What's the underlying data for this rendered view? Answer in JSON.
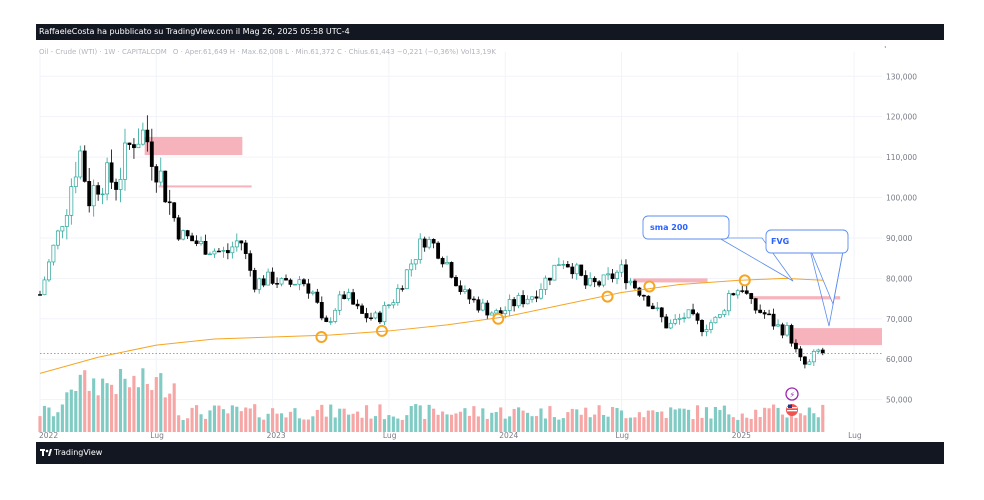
{
  "header": {
    "publisher": "RaffaeleCosta ha pubblicato su TradingView.com il Mag 26, 2025 05:58 UTC-4"
  },
  "legend": {
    "symbol": "Oil - Crude (WTI) · 1W · CAPITALCOM",
    "ohlc": "O · Aper.61,649  H · Max.62,008  L · Min.61,372  C · Chius.61,443  −0,221 (−0,36%)  Vol13,19K"
  },
  "footer": {
    "brand": "TradingView"
  },
  "annotations": {
    "sma": "sma 200",
    "fvg": "FVG"
  },
  "colors": {
    "up": "#26a69a",
    "down": "#000000",
    "sma": "#f5a623",
    "zone": "#f4a6b0",
    "volume_up": "#80cbc4",
    "volume_down": "#f7a6a6",
    "callout_border": "#5b8def",
    "callout_text": "#2962ff"
  },
  "chart_data": {
    "type": "candlestick",
    "timeframe": "1W",
    "y_axis_ticks": [
      "130,000",
      "120,000",
      "110,000",
      "100,000",
      "90,000",
      "80,000",
      "70,000",
      "60,000",
      "50,000"
    ],
    "y_tick_values": [
      130,
      120,
      110,
      100,
      90,
      80,
      70,
      60,
      50
    ],
    "ylim": [
      42,
      136
    ],
    "x_axis_ticks": [
      "2022",
      "Lug",
      "2023",
      "Lug",
      "2024",
      "Lug",
      "2025",
      "Lug"
    ],
    "x_tick_values": [
      2022.0,
      2022.5,
      2023.0,
      2023.5,
      2024.0,
      2024.5,
      2025.0,
      2025.5
    ],
    "xlim": [
      2022.0,
      2025.62
    ],
    "last_price": 61.443,
    "price_anchors": [
      [
        2022.0,
        76
      ],
      [
        2022.06,
        88
      ],
      [
        2022.1,
        95
      ],
      [
        2022.17,
        112
      ],
      [
        2022.21,
        100
      ],
      [
        2022.26,
        105
      ],
      [
        2022.33,
        104
      ],
      [
        2022.4,
        115
      ],
      [
        2022.45,
        116
      ],
      [
        2022.52,
        105
      ],
      [
        2022.6,
        91
      ],
      [
        2022.7,
        88
      ],
      [
        2022.8,
        86
      ],
      [
        2022.86,
        90
      ],
      [
        2022.92,
        79
      ],
      [
        2023.0,
        80
      ],
      [
        2023.06,
        78
      ],
      [
        2023.12,
        80
      ],
      [
        2023.18,
        76
      ],
      [
        2023.22,
        67
      ],
      [
        2023.27,
        73
      ],
      [
        2023.31,
        76
      ],
      [
        2023.38,
        71
      ],
      [
        2023.45,
        70
      ],
      [
        2023.52,
        75
      ],
      [
        2023.58,
        82
      ],
      [
        2023.65,
        90
      ],
      [
        2023.7,
        88
      ],
      [
        2023.76,
        83
      ],
      [
        2023.82,
        76
      ],
      [
        2023.9,
        73
      ],
      [
        2023.97,
        71
      ],
      [
        2024.04,
        74
      ],
      [
        2024.12,
        76
      ],
      [
        2024.18,
        80
      ],
      [
        2024.24,
        85
      ],
      [
        2024.29,
        83
      ],
      [
        2024.35,
        78
      ],
      [
        2024.42,
        79
      ],
      [
        2024.5,
        82
      ],
      [
        2024.56,
        78
      ],
      [
        2024.6,
        76
      ],
      [
        2024.66,
        71
      ],
      [
        2024.7,
        68
      ],
      [
        2024.78,
        71
      ],
      [
        2024.84,
        68
      ],
      [
        2024.92,
        70
      ],
      [
        2024.96,
        76
      ],
      [
        2025.02,
        78
      ],
      [
        2025.06,
        73
      ],
      [
        2025.12,
        71
      ],
      [
        2025.17,
        68
      ],
      [
        2025.22,
        67
      ],
      [
        2025.26,
        60
      ],
      [
        2025.3,
        58
      ],
      [
        2025.34,
        62
      ],
      [
        2025.38,
        61.44
      ]
    ],
    "sma_200": [
      [
        2022.0,
        56.5
      ],
      [
        2022.25,
        60.5
      ],
      [
        2022.5,
        63.5
      ],
      [
        2022.75,
        65.0
      ],
      [
        2023.0,
        65.5
      ],
      [
        2023.25,
        66.0
      ],
      [
        2023.5,
        67.0
      ],
      [
        2023.75,
        68.5
      ],
      [
        2024.0,
        70.5
      ],
      [
        2024.25,
        73.5
      ],
      [
        2024.5,
        76.5
      ],
      [
        2024.75,
        78.5
      ],
      [
        2025.0,
        79.5
      ],
      [
        2025.2,
        80.0
      ],
      [
        2025.38,
        79.5
      ]
    ],
    "zones": [
      {
        "x0": 2022.45,
        "x1": 2022.87,
        "y0": 110.5,
        "y1": 115.0
      },
      {
        "x0": 2022.51,
        "x1": 2022.91,
        "y0": 102.5,
        "y1": 103.0
      },
      {
        "x0": 2024.55,
        "x1": 2024.87,
        "y0": 79.0,
        "y1": 80.0
      },
      {
        "x0": 2025.06,
        "x1": 2025.44,
        "y0": 74.8,
        "y1": 75.6
      },
      {
        "x0": 2025.24,
        "x1": 2025.62,
        "y0": 63.5,
        "y1": 67.7
      }
    ],
    "touch_points": [
      [
        2023.21,
        65.5
      ],
      [
        2023.47,
        67.0
      ],
      [
        2023.97,
        70.0
      ],
      [
        2024.44,
        75.5
      ],
      [
        2024.62,
        78.0
      ],
      [
        2025.03,
        79.5
      ]
    ]
  }
}
